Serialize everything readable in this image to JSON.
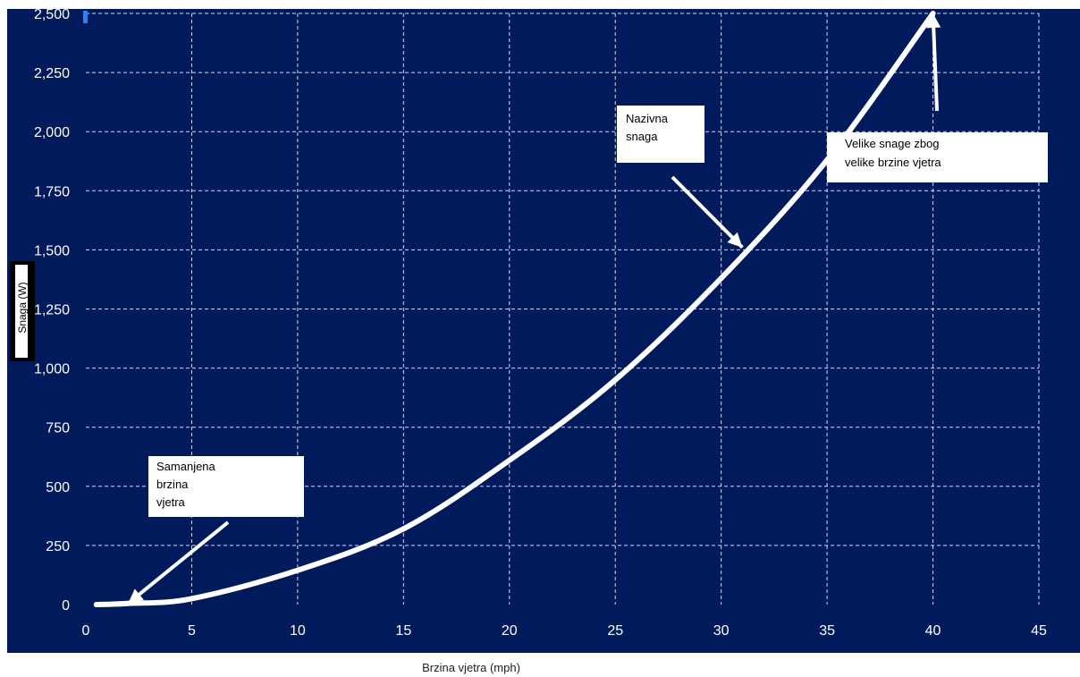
{
  "chart_data": {
    "type": "line",
    "title": "",
    "xlabel": "Brzina vjetra (mph)",
    "ylabel": "Snaga (W)",
    "xlim": [
      0,
      45
    ],
    "ylim": [
      0,
      2500
    ],
    "x_ticks": [
      "0",
      "5",
      "10",
      "15",
      "20",
      "25",
      "30",
      "35",
      "40",
      "45"
    ],
    "y_ticks": [
      "0",
      "250",
      "500",
      "750",
      "1,000",
      "1,250",
      "1,500",
      "1,750",
      "2,000",
      "2,250",
      "2,500"
    ],
    "grid": true,
    "legend": "none",
    "series": [
      {
        "x": [
          0.5,
          2,
          5,
          10,
          15,
          20,
          25,
          30,
          35,
          40
        ],
        "y": [
          0,
          5,
          25,
          145,
          320,
          610,
          950,
          1380,
          1880,
          2500
        ]
      }
    ],
    "annotations": [
      {
        "text": [
          "Samanjena",
          "brzina",
          "vjetra"
        ],
        "point": [
          2,
          5
        ]
      },
      {
        "text": [
          "Nazivna",
          "snaga"
        ],
        "point": [
          31,
          1510
        ]
      },
      {
        "text": [
          "Velike snage zbog",
          "velike brzine vjetra"
        ],
        "point": [
          40,
          2500
        ]
      }
    ],
    "colors": {
      "plot_background": "#001a5c",
      "grid": "#d6d9e6",
      "curve": "#ffffff",
      "axis_text": "#ffffff",
      "annotation_box": "#ffffff",
      "arrow": "#ffffff"
    }
  }
}
